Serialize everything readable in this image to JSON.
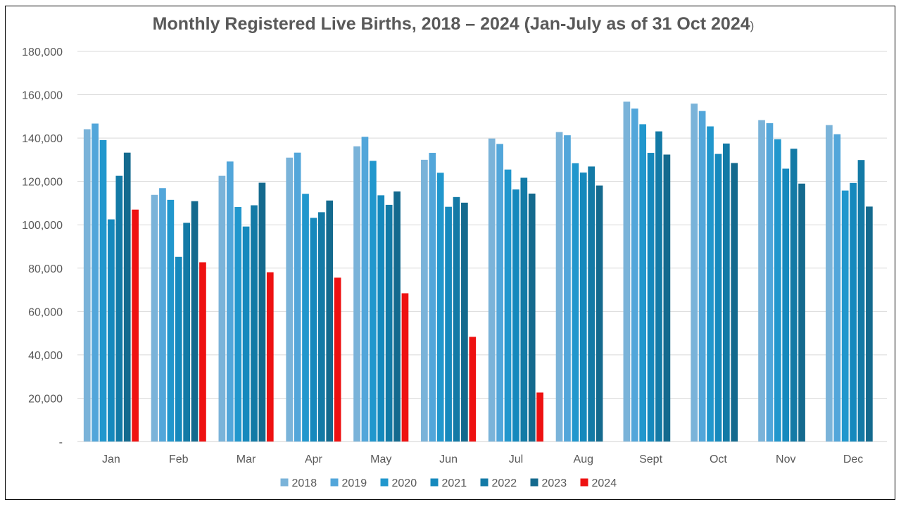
{
  "chart_data": {
    "type": "bar",
    "title": "Monthly Registered Live Births, 2018 – 2024 (Jan-July as of 31 Oct 2024",
    "title_suffix": ")",
    "xlabel": "",
    "ylabel": "",
    "ylim": [
      0,
      180000
    ],
    "ytick_step": 20000,
    "ytick_labels": [
      "-",
      "20,000",
      "40,000",
      "60,000",
      "80,000",
      "100,000",
      "120,000",
      "140,000",
      "160,000",
      "180,000"
    ],
    "grid": true,
    "legend_position": "bottom",
    "categories": [
      "Jan",
      "Feb",
      "Mar",
      "Apr",
      "May",
      "Jun",
      "Jul",
      "Aug",
      "Sept",
      "Oct",
      "Nov",
      "Dec"
    ],
    "series": [
      {
        "name": "2018",
        "color": "#7ab3d9",
        "values": [
          144100,
          113800,
          122600,
          131000,
          136200,
          130000,
          139800,
          142800,
          156800,
          155900,
          148300,
          146000
        ]
      },
      {
        "name": "2019",
        "color": "#52a6da",
        "values": [
          146700,
          116900,
          129200,
          133300,
          140600,
          133200,
          137300,
          141300,
          153600,
          152500,
          146900,
          141800
        ]
      },
      {
        "name": "2020",
        "color": "#2197cd",
        "values": [
          139100,
          111500,
          108200,
          114300,
          129500,
          124000,
          125500,
          128400,
          146400,
          145400,
          139500,
          115800
        ]
      },
      {
        "name": "2021",
        "color": "#1589bd",
        "values": [
          102500,
          85200,
          99200,
          103200,
          113600,
          108300,
          116300,
          124100,
          133200,
          132700,
          125900,
          119300
        ]
      },
      {
        "name": "2022",
        "color": "#137aa6",
        "values": [
          122600,
          100900,
          109000,
          105800,
          109200,
          112800,
          121700,
          126900,
          143100,
          137500,
          135100,
          129900
        ]
      },
      {
        "name": "2023",
        "color": "#146a8e",
        "values": [
          133300,
          110900,
          119400,
          111200,
          115400,
          110200,
          114400,
          118100,
          132400,
          128500,
          119000,
          108400
        ]
      },
      {
        "name": "2024",
        "color": "#ee1111",
        "values": [
          107000,
          82700,
          78100,
          75600,
          68400,
          48300,
          22600,
          null,
          null,
          null,
          null,
          null
        ]
      }
    ]
  }
}
